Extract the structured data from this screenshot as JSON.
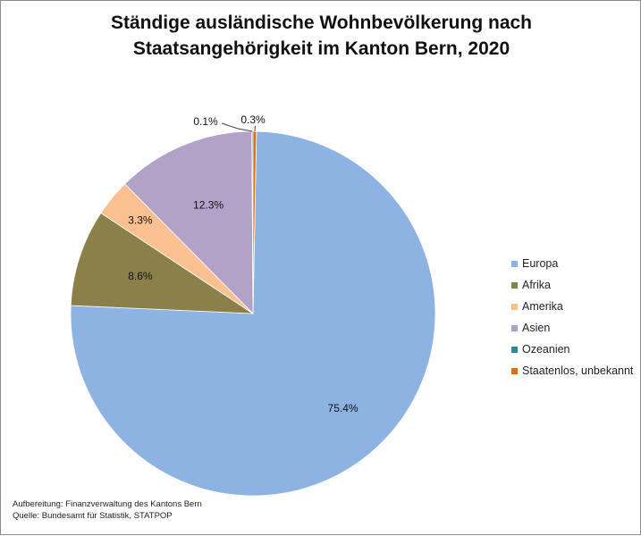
{
  "chart_data": {
    "type": "pie",
    "title_lines": [
      "Ständige ausländische Wohnbevölkerung nach",
      "Staatsangehörigkeit im Kanton Bern, 2020"
    ],
    "categories": [
      "Europa",
      "Afrika",
      "Amerika",
      "Asien",
      "Ozeanien",
      "Staatenlos, unbekannt"
    ],
    "values": [
      75.4,
      8.6,
      3.3,
      12.3,
      0.1,
      0.3
    ],
    "labels": [
      "75.4%",
      "8.6%",
      "3.3%",
      "12.3%",
      "0.1%",
      "0.3%"
    ],
    "unit": "%",
    "colors": [
      "#8DB3E2",
      "#8B7F4A",
      "#FAC090",
      "#B3A2C7",
      "#31859C",
      "#E46C0A"
    ],
    "legend_position": "right"
  },
  "footnote": {
    "line1": "Aufbereitung: Finanzverwaltung des Kantons Bern",
    "line2": "Quelle: Bundesamt für Statistik, STATPOP"
  }
}
